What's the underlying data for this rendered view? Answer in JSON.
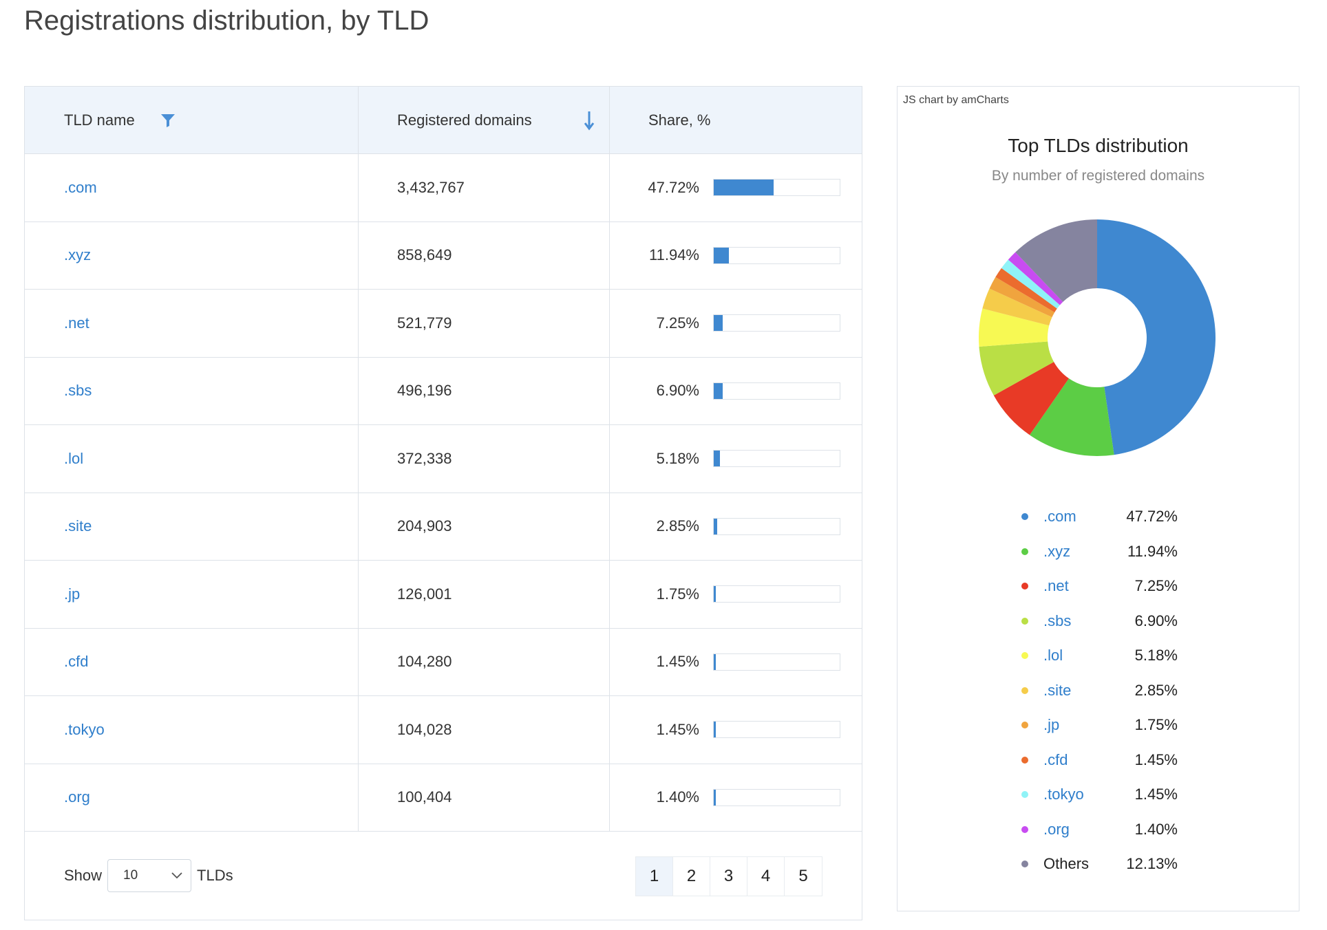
{
  "page": {
    "title": "Registrations distribution, by TLD"
  },
  "table": {
    "headers": {
      "tld": "TLD name",
      "domains": "Registered domains",
      "share": "Share, %"
    },
    "rows": [
      {
        "tld": ".com",
        "domains": "3,432,767",
        "share": "47.72%",
        "pct": 47.72
      },
      {
        "tld": ".xyz",
        "domains": "858,649",
        "share": "11.94%",
        "pct": 11.94
      },
      {
        "tld": ".net",
        "domains": "521,779",
        "share": "7.25%",
        "pct": 7.25
      },
      {
        "tld": ".sbs",
        "domains": "496,196",
        "share": "6.90%",
        "pct": 6.9
      },
      {
        "tld": ".lol",
        "domains": "372,338",
        "share": "5.18%",
        "pct": 5.18
      },
      {
        "tld": ".site",
        "domains": "204,903",
        "share": "2.85%",
        "pct": 2.85
      },
      {
        "tld": ".jp",
        "domains": "126,001",
        "share": "1.75%",
        "pct": 1.75
      },
      {
        "tld": ".cfd",
        "domains": "104,280",
        "share": "1.45%",
        "pct": 1.45
      },
      {
        "tld": ".tokyo",
        "domains": "104,028",
        "share": "1.45%",
        "pct": 1.45
      },
      {
        "tld": ".org",
        "domains": "100,404",
        "share": "1.40%",
        "pct": 1.4
      }
    ],
    "footer": {
      "show_label": "Show",
      "page_size": "10",
      "unit_label": "TLDs",
      "pages": [
        "1",
        "2",
        "3",
        "4",
        "5"
      ],
      "active_page": "1"
    }
  },
  "chart_panel": {
    "credit": "JS chart by amCharts",
    "title": "Top TLDs distribution",
    "subtitle": "By number of registered domains"
  },
  "colors": {
    "link": "#2f7ecb",
    "bar": "#3f88d0",
    "header_bg": "#eef4fb"
  },
  "chart_data": {
    "type": "pie",
    "donut": true,
    "title": "Top TLDs distribution",
    "subtitle": "By number of registered domains",
    "legend_position": "bottom",
    "slices": [
      {
        "label": ".com",
        "value": 47.72,
        "display": "47.72%",
        "color": "#3f88d0"
      },
      {
        "label": ".xyz",
        "value": 11.94,
        "display": "11.94%",
        "color": "#5ccd45"
      },
      {
        "label": ".net",
        "value": 7.25,
        "display": "7.25%",
        "color": "#e83a26"
      },
      {
        "label": ".sbs",
        "value": 6.9,
        "display": "6.90%",
        "color": "#badf45"
      },
      {
        "label": ".lol",
        "value": 5.18,
        "display": "5.18%",
        "color": "#f7f953"
      },
      {
        "label": ".site",
        "value": 2.85,
        "display": "2.85%",
        "color": "#f5cc4a"
      },
      {
        "label": ".jp",
        "value": 1.75,
        "display": "1.75%",
        "color": "#f0a43e"
      },
      {
        "label": ".cfd",
        "value": 1.45,
        "display": "1.45%",
        "color": "#eb6c2e"
      },
      {
        "label": ".tokyo",
        "value": 1.45,
        "display": "1.45%",
        "color": "#8ff3f7"
      },
      {
        "label": ".org",
        "value": 1.4,
        "display": "1.40%",
        "color": "#c84cf1"
      },
      {
        "label": "Others",
        "value": 12.13,
        "display": "12.13%",
        "color": "#85849f"
      }
    ]
  }
}
